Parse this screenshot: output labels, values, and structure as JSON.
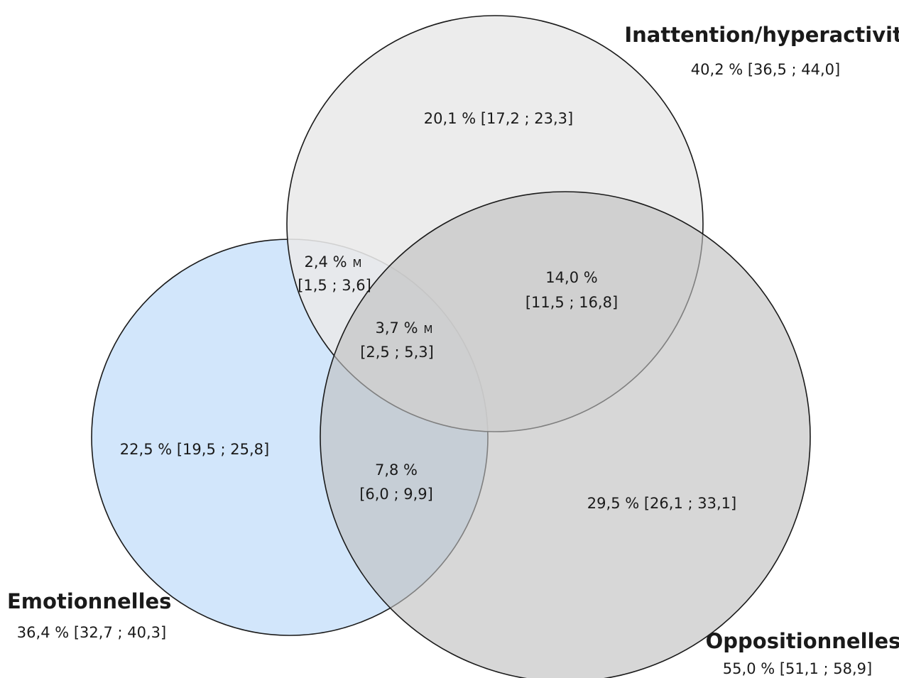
{
  "colors": {
    "emotionnelles_fill": "#d2e6fb",
    "inattention_fill": "#e9e9e9",
    "oppositionnelles_fill": "#bfbfbf",
    "stroke": "#1a1a1a"
  },
  "sets": {
    "inattention": {
      "name": "Inattention/hyperactivité",
      "value": "40,2 % [36,5 ; 44,0]"
    },
    "emotionnelles": {
      "name": "Emotionnelles",
      "value": "36,4 % [32,7 ; 40,3]"
    },
    "oppositionnelles": {
      "name": "Oppositionnelles",
      "value": "55,0 % [51,1 ; 58,9]"
    }
  },
  "regions": {
    "inattention_only": "20,1 % [17,2 ; 23,3]",
    "emotionnelles_only": "22,5 % [19,5 ; 25,8]",
    "oppositionnelles_only": "29,5 % [26,1 ; 33,1]",
    "inatt_opp": {
      "pct": "14,0 %",
      "ci": "[11,5 ; 16,8]"
    },
    "emo_inatt": {
      "pct": "2,4 %",
      "flag": "M",
      "ci": "[1,5 ; 3,6]"
    },
    "all_three": {
      "pct": "3,7 %",
      "flag": "M",
      "ci": "[2,5 ; 5,3]"
    },
    "emo_opp": {
      "pct": "7,8 %",
      "ci": "[6,0 ; 9,9]"
    }
  }
}
